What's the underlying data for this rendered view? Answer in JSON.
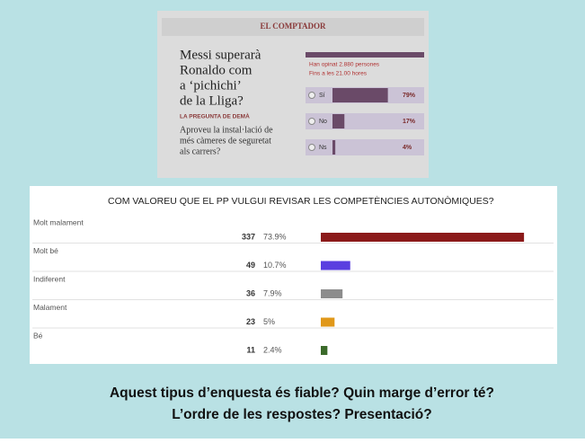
{
  "clipping": {
    "header": "EL COMPTADOR",
    "question": [
      "Messi superarà",
      "Ronaldo com",
      "a ‘pichichi’",
      "de la Lliga?"
    ],
    "votes_note": "Han opinat 2.880 persones",
    "time_note": "Fins a les 21.00 hores",
    "next_label": "LA PREGUNTA DE DEMÀ",
    "next_question": [
      "Aproveu la instal·lació de",
      "més càmeres de seguretat",
      "als carrers?"
    ]
  },
  "chart_data": [
    {
      "type": "bar",
      "categories": [
        "Sí",
        "No",
        "Ns"
      ],
      "values": [
        79,
        17,
        4
      ],
      "value_labels": [
        "79%",
        "17%",
        "4%"
      ],
      "color": "#6a4a68"
    },
    {
      "type": "bar",
      "title": "COM VALOREU QUE EL PP VULGUI REVISAR LES COMPETÈNCIES AUTONÒMIQUES?",
      "categories": [
        "Molt malament",
        "Molt bé",
        "Indiferent",
        "Malament",
        "Bé"
      ],
      "counts": [
        337,
        49,
        36,
        23,
        11
      ],
      "values": [
        73.9,
        10.7,
        7.9,
        5,
        2.4
      ],
      "value_labels": [
        "73.9%",
        "10.7%",
        "7.9%",
        "5%",
        "2.4%"
      ],
      "colors": [
        "#8b1a1a",
        "#5a3fe0",
        "#8c8c8c",
        "#e0981a",
        "#3b6a2a"
      ]
    }
  ],
  "caption": [
    "Aquest tipus d’enquesta és fiable? Quin marge d’error té?",
    "L’ordre de les respostes? Presentació?"
  ]
}
